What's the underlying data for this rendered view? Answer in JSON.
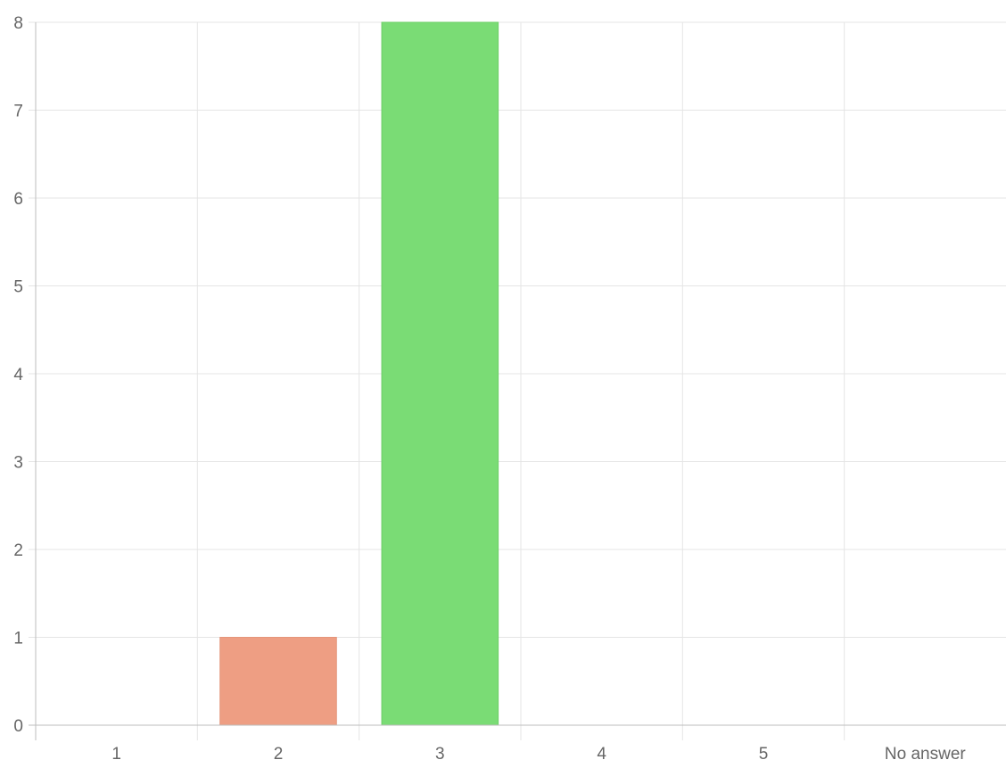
{
  "chart_data": {
    "type": "bar",
    "title": "",
    "xlabel": "",
    "ylabel": "",
    "categories": [
      "1",
      "2",
      "3",
      "4",
      "5",
      "No answer"
    ],
    "values": [
      0,
      1,
      8,
      0,
      0,
      0
    ],
    "ylim": [
      0,
      8
    ],
    "yticks": [
      "0",
      "1",
      "2",
      "3",
      "4",
      "5",
      "6",
      "7",
      "8"
    ],
    "grid": true,
    "legend": "none",
    "bar_colors": [
      "#9e9e9e",
      "#ee9e83",
      "#7adc75",
      "#9e9e9e",
      "#9e9e9e",
      "#9e9e9e"
    ],
    "bar_border_colors": [
      "#9e9e9e",
      "#e5957a",
      "#6ccf67",
      "#9e9e9e",
      "#9e9e9e",
      "#9e9e9e"
    ],
    "grid_color": "#e5e5e5",
    "axis_color": "#bdbdbd"
  }
}
